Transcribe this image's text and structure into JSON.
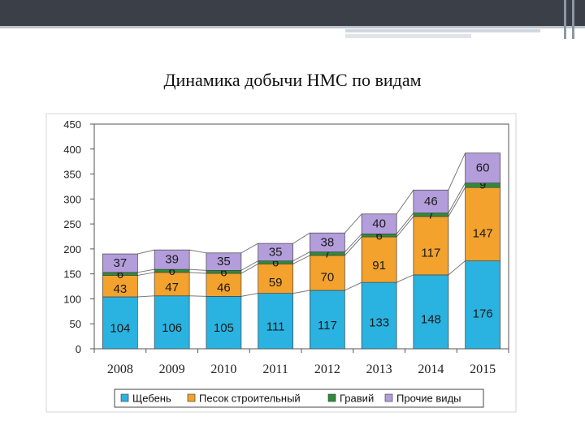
{
  "chart_data": {
    "type": "bar",
    "stacked": true,
    "title": "Динамика добычи НМС по видам",
    "categories": [
      "2008",
      "2009",
      "2010",
      "2011",
      "2012",
      "2013",
      "2014",
      "2015"
    ],
    "series": [
      {
        "name": "Щебень",
        "color": "#2ab3e0",
        "values": [
          104,
          106,
          105,
          111,
          117,
          133,
          148,
          176
        ]
      },
      {
        "name": "Песок строительный",
        "color": "#f2a22d",
        "values": [
          43,
          47,
          46,
          59,
          70,
          91,
          117,
          147
        ]
      },
      {
        "name": "Гравий",
        "color": "#2e8b3a",
        "values": [
          6,
          6,
          6,
          6,
          7,
          6,
          7,
          9
        ]
      },
      {
        "name": "Прочие виды",
        "color": "#b39ddb",
        "values": [
          37,
          39,
          35,
          35,
          38,
          40,
          46,
          60
        ]
      }
    ],
    "ylim": [
      0,
      450
    ],
    "yticks": [
      0,
      50,
      100,
      150,
      200,
      250,
      300,
      350,
      400,
      450
    ],
    "grid": false,
    "legend": "bottom"
  }
}
